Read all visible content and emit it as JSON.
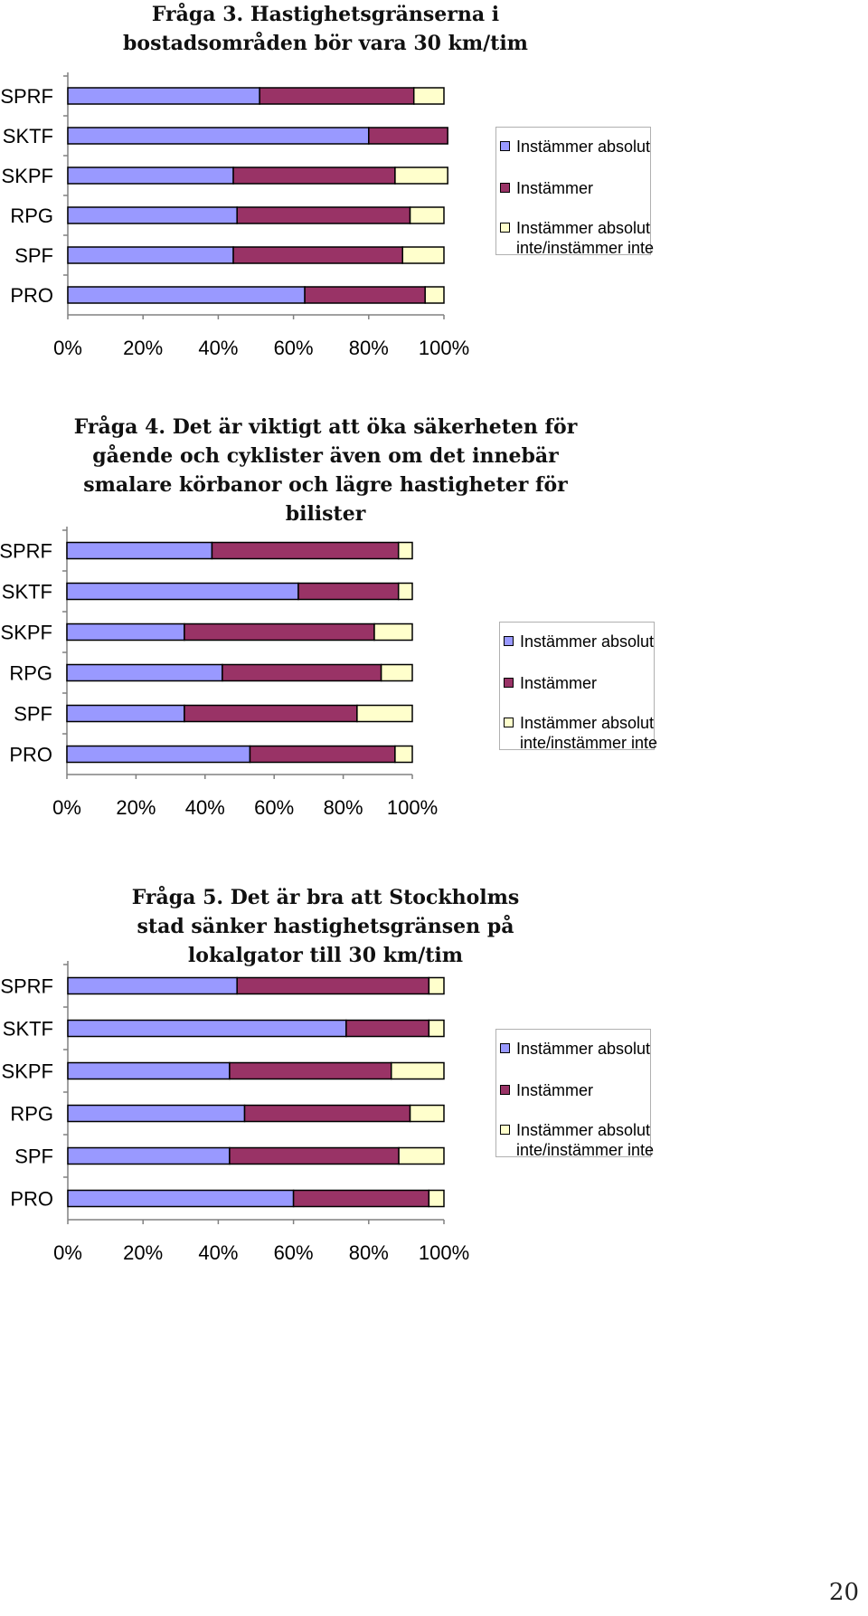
{
  "chart_data": [
    {
      "type": "bar",
      "orientation": "horizontal",
      "stacked": "percent",
      "title": "Fråga 3. Hastighetsgränserna i bostadsområden bör vara 30 km/tim",
      "categories": [
        "SPRF",
        "SKTF",
        "SKPF",
        "RPG",
        "SPF",
        "PRO"
      ],
      "series": [
        {
          "name": "Instämmer absolut",
          "color": "#9999ff",
          "values": [
            51,
            80,
            44,
            45,
            44,
            63
          ]
        },
        {
          "name": "Instämmer",
          "color": "#993366",
          "values": [
            41,
            21,
            43,
            46,
            45,
            32
          ]
        },
        {
          "name": "Instämmer absolut inte/instämmer inte",
          "color": "#ffffcc",
          "values": [
            8,
            0,
            14,
            9,
            11,
            5
          ]
        }
      ],
      "x_ticks": [
        "0%",
        "20%",
        "40%",
        "60%",
        "80%",
        "100%"
      ],
      "xlim": [
        0,
        100
      ],
      "legend_position": "right"
    },
    {
      "type": "bar",
      "orientation": "horizontal",
      "stacked": "percent",
      "title": "Fråga 4. Det är viktigt att öka säkerheten för gående och cyklister även om det innebär smalare körbanor och lägre hastigheter för bilister",
      "categories": [
        "SPRF",
        "SKTF",
        "SKPF",
        "RPG",
        "SPF",
        "PRO"
      ],
      "series": [
        {
          "name": "Instämmer absolut",
          "color": "#9999ff",
          "values": [
            42,
            67,
            34,
            45,
            34,
            53
          ]
        },
        {
          "name": "Instämmer",
          "color": "#993366",
          "values": [
            54,
            29,
            55,
            46,
            50,
            42
          ]
        },
        {
          "name": "Instämmer absolut inte/instämmer inte",
          "color": "#ffffcc",
          "values": [
            4,
            4,
            11,
            9,
            16,
            5
          ]
        }
      ],
      "x_ticks": [
        "0%",
        "20%",
        "40%",
        "60%",
        "80%",
        "100%"
      ],
      "xlim": [
        0,
        100
      ],
      "legend_position": "right"
    },
    {
      "type": "bar",
      "orientation": "horizontal",
      "stacked": "percent",
      "title": "Fråga 5. Det är bra att Stockholms stad sänker hastighetsgränsen på lokalgator till 30 km/tim",
      "categories": [
        "SPRF",
        "SKTF",
        "SKPF",
        "RPG",
        "SPF",
        "PRO"
      ],
      "series": [
        {
          "name": "Instämmer absolut",
          "color": "#9999ff",
          "values": [
            45,
            74,
            43,
            47,
            43,
            60
          ]
        },
        {
          "name": "Instämmer",
          "color": "#993366",
          "values": [
            51,
            22,
            43,
            44,
            45,
            36
          ]
        },
        {
          "name": "Instämmer absolut inte/instämmer inte",
          "color": "#ffffcc",
          "values": [
            4,
            4,
            14,
            9,
            12,
            4
          ]
        }
      ],
      "x_ticks": [
        "0%",
        "20%",
        "40%",
        "60%",
        "80%",
        "100%"
      ],
      "xlim": [
        0,
        100
      ],
      "legend_position": "right"
    }
  ],
  "page_number": "20"
}
